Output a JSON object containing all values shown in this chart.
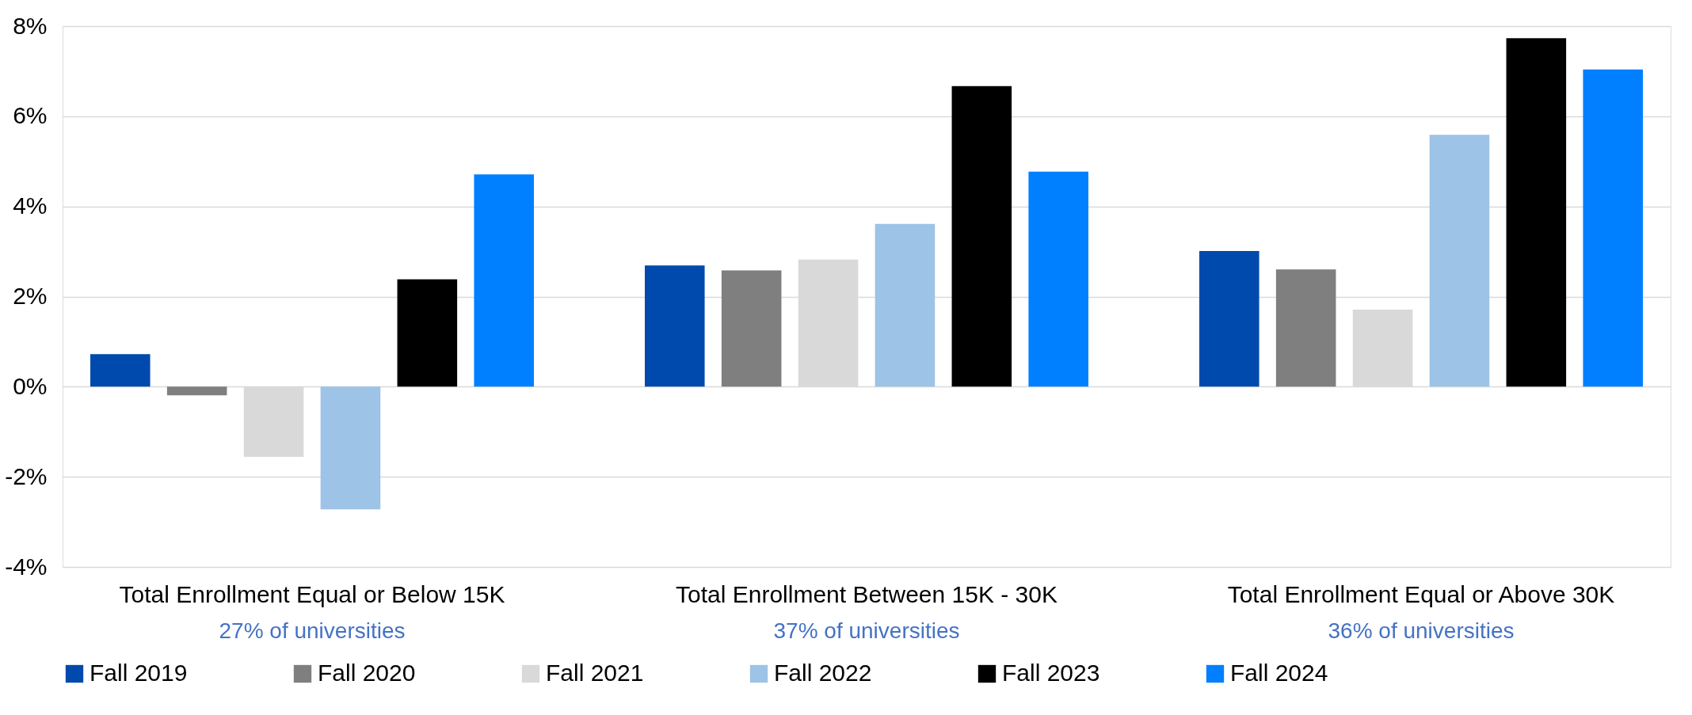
{
  "chart_data": {
    "type": "bar",
    "categories": [
      "Total Enrollment Equal or Below 15K",
      "Total Enrollment Between 15K - 30K",
      "Total Enrollment Equal or Above 30K"
    ],
    "series": [
      {
        "name": "Fall 2019",
        "color": "#004aad",
        "values": [
          0.72,
          2.69,
          3.01
        ]
      },
      {
        "name": "Fall 2020",
        "color": "#7f7f7f",
        "values": [
          -0.19,
          2.58,
          2.6
        ]
      },
      {
        "name": "Fall 2021",
        "color": "#d9d9d9",
        "values": [
          -1.56,
          2.82,
          1.71
        ]
      },
      {
        "name": "Fall 2022",
        "color": "#9dc3e6",
        "values": [
          -2.72,
          3.61,
          5.59
        ]
      },
      {
        "name": "Fall 2023",
        "color": "#000000",
        "values": [
          2.38,
          6.67,
          7.73
        ]
      },
      {
        "name": "Fall 2024",
        "color": "#0080ff",
        "values": [
          4.71,
          4.77,
          7.04
        ]
      }
    ],
    "annotations": [
      "27% of universities",
      "37% of universities",
      "36% of universities"
    ],
    "ylim": [
      -4,
      8
    ],
    "yticks": [
      {
        "value": -4,
        "label": "-4%"
      },
      {
        "value": -2,
        "label": "-2%"
      },
      {
        "value": 0,
        "label": "0%"
      },
      {
        "value": 2,
        "label": "2%"
      },
      {
        "value": 4,
        "label": "4%"
      },
      {
        "value": 6,
        "label": "6%"
      },
      {
        "value": 8,
        "label": "8%"
      }
    ],
    "grid": "y",
    "legend": "bottom"
  }
}
